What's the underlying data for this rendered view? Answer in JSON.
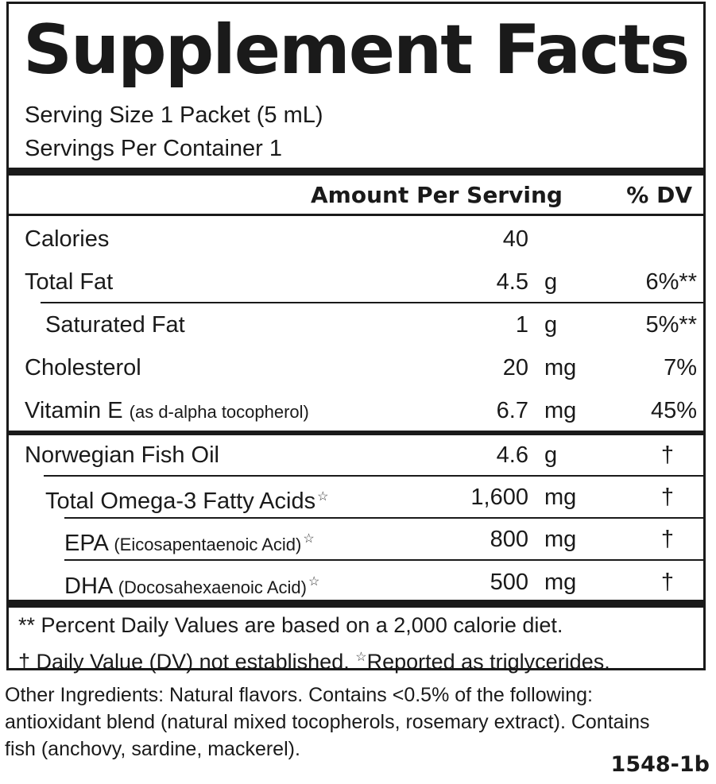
{
  "title": "Supplement Facts",
  "serving_size": "Serving Size 1 Packet (5 mL)",
  "servings_per_container": "Servings Per Container 1",
  "header": {
    "amount": "Amount Per Serving",
    "dv": "% DV"
  },
  "group1": [
    {
      "name": "Calories",
      "sub": "",
      "qty": "40",
      "unit": "",
      "dv": ""
    },
    {
      "name": "Total Fat",
      "sub": "",
      "qty": "4.5",
      "unit": "g",
      "dv": "6%**"
    },
    {
      "name": "Saturated Fat",
      "sub": "",
      "qty": "1",
      "unit": "g",
      "dv": "5%**"
    },
    {
      "name": "Cholesterol",
      "sub": "",
      "qty": "20",
      "unit": "mg",
      "dv": "7%"
    },
    {
      "name": "Vitamin E",
      "sub": "(as d-alpha tocopherol)",
      "qty": "6.7",
      "unit": "mg",
      "dv": "45%"
    }
  ],
  "group2": [
    {
      "name": "Norwegian Fish Oil",
      "sub": "",
      "star": "",
      "qty": "4.6",
      "unit": "g",
      "dv": "†"
    },
    {
      "name": "Total Omega-3 Fatty Acids",
      "sub": "",
      "star": "☆",
      "qty": "1,600",
      "unit": "mg",
      "dv": "†"
    },
    {
      "name": "EPA",
      "sub": "(Eicosapentaenoic Acid)",
      "star": "☆",
      "qty": "800",
      "unit": "mg",
      "dv": "†"
    },
    {
      "name": "DHA",
      "sub": "(Docosahexaenoic Acid)",
      "star": "☆",
      "qty": "500",
      "unit": "mg",
      "dv": "†"
    }
  ],
  "footnote1": "** Percent Daily Values are based on a 2,000 calorie diet.",
  "footnote2a": "† Daily Value (DV) not established.",
  "footnote2_star": "☆",
  "footnote2b": "Reported as triglycerides.",
  "other_ingredients": [
    "Other Ingredients: Natural flavors. Contains <0.5% of the following:",
    "antioxidant blend (natural mixed tocopherols, rosemary extract). Contains",
    "fish (anchovy, sardine, mackerel)."
  ],
  "code": "1548-1b"
}
